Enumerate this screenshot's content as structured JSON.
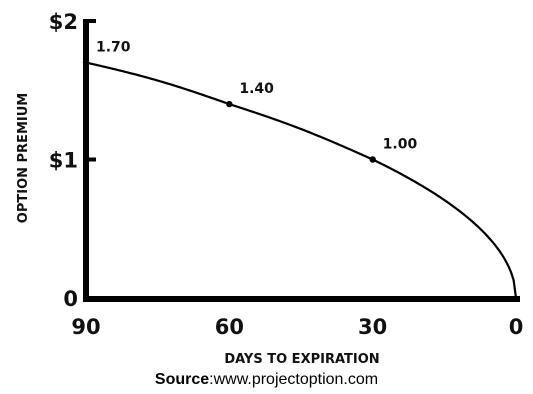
{
  "chart_data": {
    "type": "line",
    "xlabel": "DAYS TO EXPIRATION",
    "ylabel": "OPTION PREMIUM",
    "xlim": [
      90,
      0
    ],
    "ylim": [
      0,
      2
    ],
    "x_ticks": [
      "90",
      "60",
      "30",
      "0"
    ],
    "y_ticks": [
      "0",
      "$1",
      "$2"
    ],
    "series": [
      {
        "x": [
          90,
          60,
          30,
          0
        ],
        "y": [
          1.7,
          1.4,
          1.0,
          0
        ],
        "labels": [
          "1.70",
          "1.40",
          "1.00",
          ""
        ]
      }
    ],
    "grid": false
  },
  "source": {
    "prefix": "Source",
    "text": ":www.projectoption.com"
  }
}
